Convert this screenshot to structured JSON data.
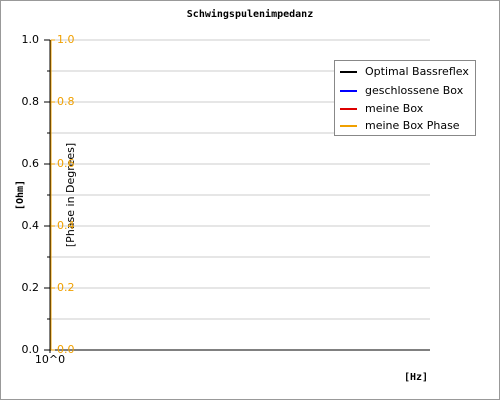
{
  "chart_data": {
    "type": "line",
    "title": "Schwingspulenimpedanz",
    "xlabel": "[Hz]",
    "ylabel": "[Ohm]",
    "y2label": "[Phase in Degrees]",
    "xscale": "log",
    "xlim": [
      1,
      10
    ],
    "xticks": [
      {
        "value": 1,
        "label": "10^0"
      }
    ],
    "ylim": [
      0,
      1
    ],
    "yticks": [
      {
        "value": 0,
        "label": "0.0"
      },
      0.2,
      0.4,
      0.6,
      0.8,
      {
        "value": 1,
        "label": "1.0"
      }
    ],
    "yminorticks": [
      0.1,
      0.3,
      0.5,
      0.7,
      0.9
    ],
    "y2lim": [
      0,
      1
    ],
    "y2ticks": [
      {
        "value": 0,
        "label": "0.0"
      },
      0.2,
      0.4,
      0.6,
      0.8,
      {
        "value": 1,
        "label": "1.0"
      }
    ],
    "y2color": "#f0a000",
    "grid": true,
    "legend": "upper right",
    "series": [
      {
        "name": "Optimal Bassreflex",
        "color": "#000000",
        "x": [],
        "values": []
      },
      {
        "name": "geschlossene Box",
        "color": "#0000ff",
        "x": [],
        "values": []
      },
      {
        "name": "meine Box",
        "color": "#dd0000",
        "x": [],
        "values": []
      },
      {
        "name": "meine Box Phase",
        "color": "#f0a000",
        "x": [],
        "values": [],
        "axis": "y2"
      }
    ]
  }
}
